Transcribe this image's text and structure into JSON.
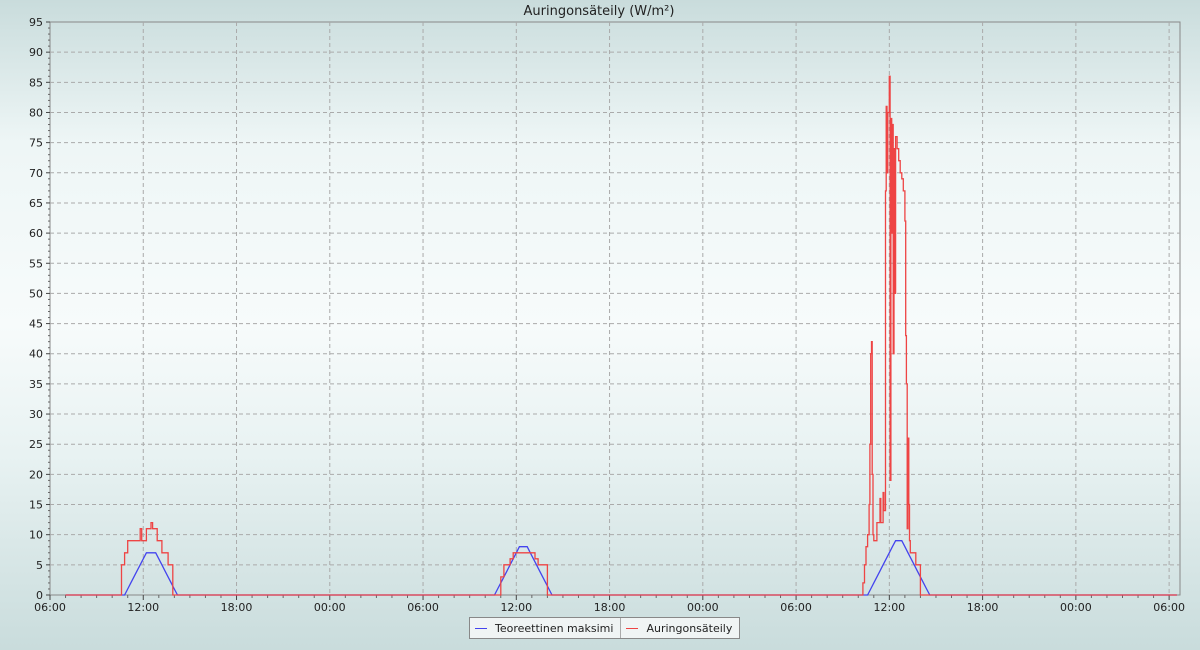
{
  "chart_data": {
    "type": "line",
    "title": "Auringonsäteily (W/m²)",
    "xlabel": "",
    "ylabel": "",
    "ylim": [
      0,
      95
    ],
    "yticks": [
      0,
      5,
      10,
      15,
      20,
      25,
      30,
      35,
      40,
      45,
      50,
      55,
      60,
      65,
      70,
      75,
      80,
      85,
      90,
      95
    ],
    "x_unit": "hours since first 06:00",
    "xlim": [
      0,
      72.7
    ],
    "xtick_labels": [
      "06:00",
      "12:00",
      "18:00",
      "00:00",
      "06:00",
      "12:00",
      "18:00",
      "00:00",
      "06:00",
      "12:00",
      "18:00",
      "00:00",
      "06:00"
    ],
    "grid": true,
    "legend_position": "bottom-center",
    "series": [
      {
        "name": "Teoreettinen maksimi",
        "color": "#4444ee",
        "points": [
          [
            1,
            0
          ],
          [
            4.8,
            0
          ],
          [
            5.0,
            1
          ],
          [
            5.2,
            2
          ],
          [
            5.4,
            3
          ],
          [
            5.6,
            4
          ],
          [
            5.8,
            5
          ],
          [
            6.0,
            6
          ],
          [
            6.2,
            7
          ],
          [
            6.8,
            7
          ],
          [
            7.0,
            6
          ],
          [
            7.2,
            5
          ],
          [
            7.4,
            4
          ],
          [
            7.6,
            3
          ],
          [
            7.8,
            2
          ],
          [
            8.0,
            1
          ],
          [
            8.2,
            0
          ],
          [
            28.6,
            0
          ],
          [
            28.8,
            1
          ],
          [
            29.0,
            2
          ],
          [
            29.2,
            3
          ],
          [
            29.4,
            4
          ],
          [
            29.6,
            5
          ],
          [
            29.8,
            6
          ],
          [
            30.0,
            7
          ],
          [
            30.2,
            8
          ],
          [
            30.7,
            8
          ],
          [
            30.9,
            7
          ],
          [
            31.1,
            6
          ],
          [
            31.3,
            5
          ],
          [
            31.5,
            4
          ],
          [
            31.7,
            3
          ],
          [
            31.9,
            2
          ],
          [
            32.1,
            1
          ],
          [
            32.3,
            0
          ],
          [
            52.6,
            0
          ],
          [
            52.8,
            1
          ],
          [
            53.0,
            2
          ],
          [
            53.2,
            3
          ],
          [
            53.4,
            4
          ],
          [
            53.6,
            5
          ],
          [
            53.8,
            6
          ],
          [
            54.0,
            7
          ],
          [
            54.2,
            8
          ],
          [
            54.4,
            9
          ],
          [
            54.8,
            9
          ],
          [
            55.0,
            8
          ],
          [
            55.2,
            7
          ],
          [
            55.4,
            6
          ],
          [
            55.6,
            5
          ],
          [
            55.8,
            4
          ],
          [
            56.0,
            3
          ],
          [
            56.2,
            2
          ],
          [
            56.4,
            1
          ],
          [
            56.6,
            0
          ],
          [
            72.5,
            0
          ]
        ]
      },
      {
        "name": "Auringonsäteily",
        "color": "#ee4444",
        "points": [
          [
            1,
            0
          ],
          [
            4.6,
            0
          ],
          [
            4.6,
            5
          ],
          [
            4.8,
            5
          ],
          [
            4.8,
            7
          ],
          [
            5.0,
            7
          ],
          [
            5.0,
            9
          ],
          [
            5.8,
            9
          ],
          [
            5.8,
            11
          ],
          [
            5.9,
            11
          ],
          [
            5.9,
            9
          ],
          [
            6.2,
            9
          ],
          [
            6.2,
            11
          ],
          [
            6.5,
            11
          ],
          [
            6.5,
            12
          ],
          [
            6.6,
            12
          ],
          [
            6.6,
            11
          ],
          [
            6.9,
            11
          ],
          [
            6.9,
            9
          ],
          [
            7.2,
            9
          ],
          [
            7.2,
            7
          ],
          [
            7.6,
            7
          ],
          [
            7.6,
            5
          ],
          [
            7.9,
            5
          ],
          [
            7.9,
            0
          ],
          [
            29.0,
            0
          ],
          [
            29.0,
            3
          ],
          [
            29.2,
            3
          ],
          [
            29.2,
            5
          ],
          [
            29.6,
            5
          ],
          [
            29.6,
            6
          ],
          [
            29.8,
            6
          ],
          [
            29.8,
            7
          ],
          [
            31.2,
            7
          ],
          [
            31.2,
            6
          ],
          [
            31.4,
            6
          ],
          [
            31.4,
            5
          ],
          [
            32.0,
            5
          ],
          [
            32.0,
            0
          ],
          [
            52.3,
            0
          ],
          [
            52.3,
            2
          ],
          [
            52.4,
            2
          ],
          [
            52.4,
            5
          ],
          [
            52.5,
            5
          ],
          [
            52.5,
            8
          ],
          [
            52.6,
            8
          ],
          [
            52.6,
            10
          ],
          [
            52.7,
            10
          ],
          [
            52.7,
            15
          ],
          [
            52.75,
            15
          ],
          [
            52.75,
            25
          ],
          [
            52.8,
            25
          ],
          [
            52.8,
            40
          ],
          [
            52.85,
            40
          ],
          [
            52.85,
            42
          ],
          [
            52.9,
            42
          ],
          [
            52.9,
            20
          ],
          [
            52.95,
            20
          ],
          [
            52.95,
            10
          ],
          [
            53.0,
            10
          ],
          [
            53.0,
            9
          ],
          [
            53.2,
            9
          ],
          [
            53.2,
            12
          ],
          [
            53.4,
            12
          ],
          [
            53.4,
            16
          ],
          [
            53.45,
            16
          ],
          [
            53.45,
            12
          ],
          [
            53.6,
            12
          ],
          [
            53.6,
            17
          ],
          [
            53.65,
            17
          ],
          [
            53.65,
            14
          ],
          [
            53.75,
            14
          ],
          [
            53.75,
            67
          ],
          [
            53.8,
            67
          ],
          [
            53.8,
            81
          ],
          [
            53.85,
            81
          ],
          [
            53.85,
            70
          ],
          [
            53.9,
            70
          ],
          [
            53.9,
            80
          ],
          [
            54.0,
            80
          ],
          [
            54.0,
            86
          ],
          [
            54.05,
            86
          ],
          [
            54.05,
            19
          ],
          [
            54.1,
            19
          ],
          [
            54.1,
            79
          ],
          [
            54.15,
            79
          ],
          [
            54.15,
            60
          ],
          [
            54.2,
            60
          ],
          [
            54.2,
            78
          ],
          [
            54.25,
            78
          ],
          [
            54.25,
            40
          ],
          [
            54.3,
            40
          ],
          [
            54.3,
            74
          ],
          [
            54.35,
            74
          ],
          [
            54.35,
            50
          ],
          [
            54.4,
            50
          ],
          [
            54.4,
            76
          ],
          [
            54.5,
            76
          ],
          [
            54.5,
            74
          ],
          [
            54.6,
            74
          ],
          [
            54.6,
            72
          ],
          [
            54.7,
            72
          ],
          [
            54.7,
            70
          ],
          [
            54.8,
            70
          ],
          [
            54.8,
            69
          ],
          [
            54.9,
            69
          ],
          [
            54.9,
            67
          ],
          [
            55.0,
            67
          ],
          [
            55.0,
            62
          ],
          [
            55.05,
            62
          ],
          [
            55.05,
            43
          ],
          [
            55.1,
            43
          ],
          [
            55.1,
            35
          ],
          [
            55.15,
            35
          ],
          [
            55.15,
            11
          ],
          [
            55.2,
            11
          ],
          [
            55.2,
            26
          ],
          [
            55.25,
            26
          ],
          [
            55.25,
            15
          ],
          [
            55.3,
            15
          ],
          [
            55.3,
            9
          ],
          [
            55.35,
            9
          ],
          [
            55.35,
            7
          ],
          [
            55.7,
            7
          ],
          [
            55.7,
            5
          ],
          [
            56.0,
            5
          ],
          [
            56.0,
            0
          ],
          [
            72.5,
            0
          ]
        ]
      }
    ]
  }
}
